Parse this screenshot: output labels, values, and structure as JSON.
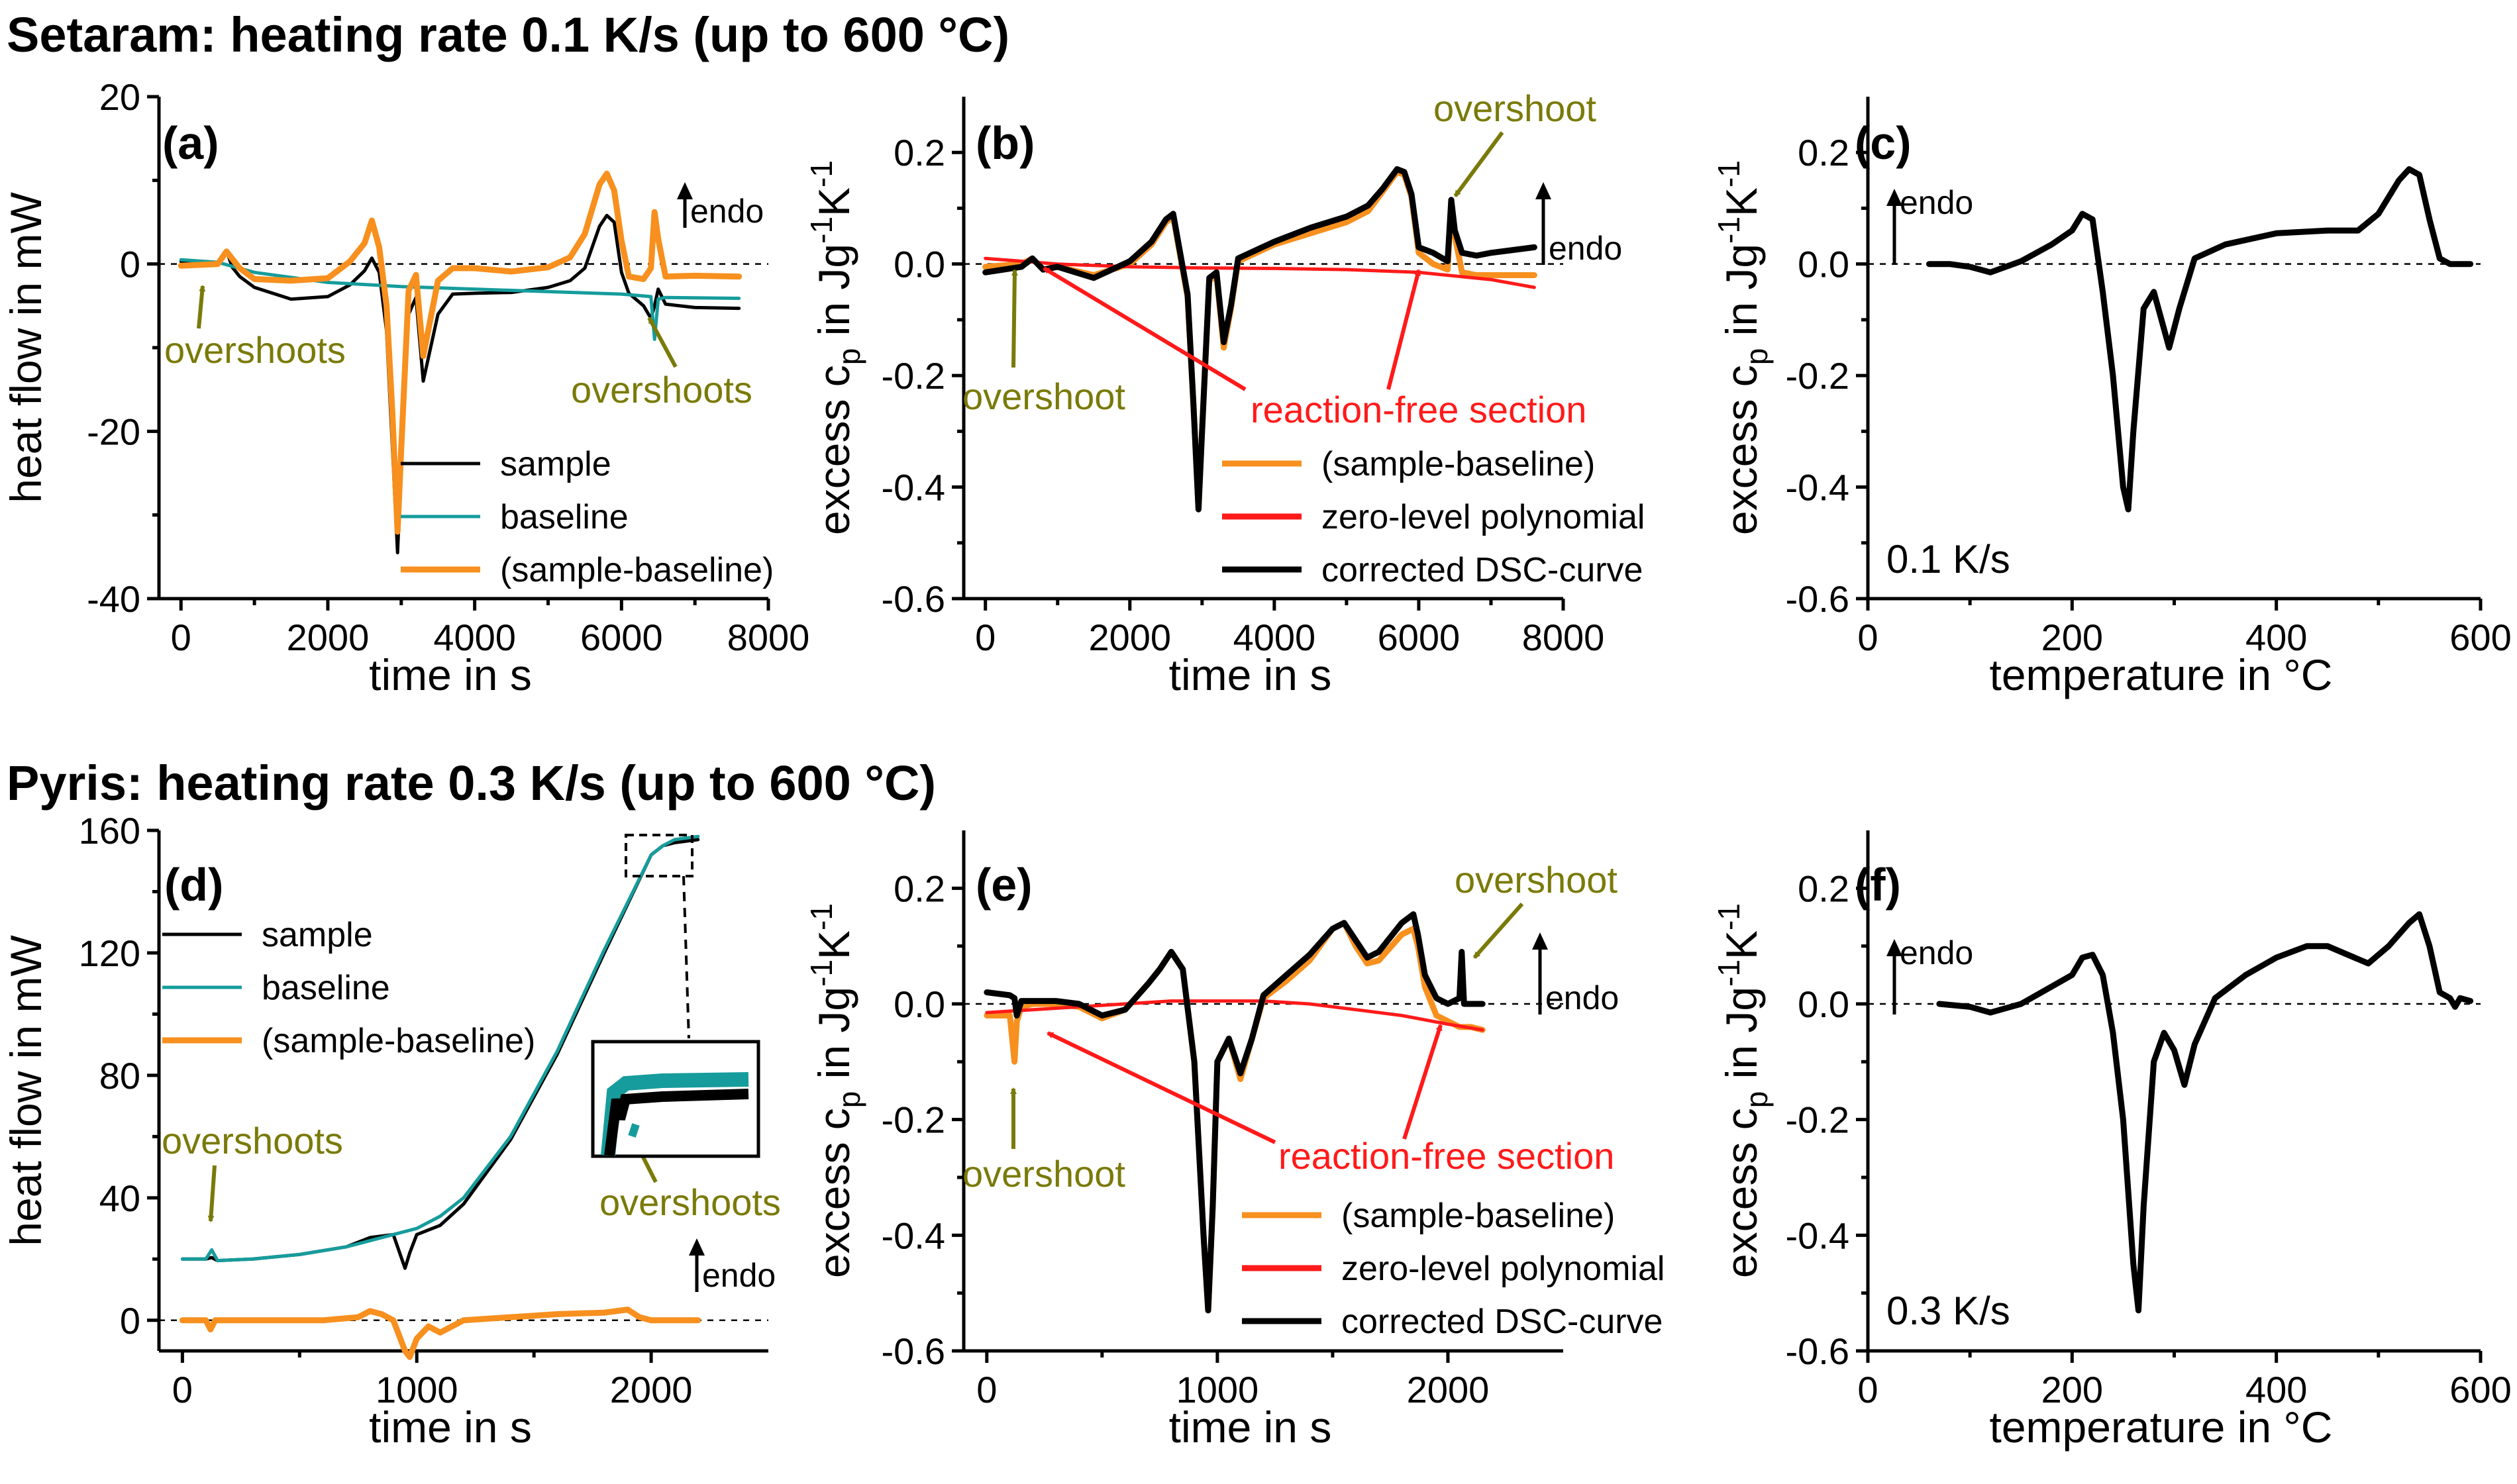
{
  "figure": {
    "title_top": "Setaram: heating rate 0.1 K/s (up to 600 °C)",
    "title_bottom": "Pyris: heating rate 0.3 K/s (up to 600 °C)"
  },
  "colors": {
    "sample": "#000000",
    "baseline": "#169c9c",
    "difference": "#f7901e",
    "polynomial": "#ff1a1a",
    "corrected": "#000000",
    "annotation_olive": "#7a7a0a",
    "annotation_red": "#ff1a1a"
  },
  "labels": {
    "endo": "endo",
    "overshoot": "overshoot",
    "overshoots": "overshoots",
    "reaction_free": "reaction-free section",
    "rate_c": "0.1 K/s",
    "rate_f": "0.3 K/s"
  },
  "chart_data": [
    {
      "id": "a",
      "type": "line",
      "panel_label": "(a)",
      "xlabel": "time in s",
      "ylabel": "heat flow in mW",
      "xlim": [
        -300,
        8000
      ],
      "ylim": [
        -40,
        20
      ],
      "xticks": [
        0,
        2000,
        4000,
        6000,
        8000
      ],
      "yticks": [
        -40,
        -20,
        0,
        20
      ],
      "legend": [
        "sample",
        "baseline",
        "(sample-baseline)"
      ],
      "series": [
        {
          "name": "sample",
          "x": [
            0,
            500,
            620,
            700,
            800,
            1000,
            1500,
            2000,
            2300,
            2500,
            2600,
            2700,
            2800,
            2880,
            2950,
            3000,
            3100,
            3200,
            3300,
            3400,
            3500,
            3700,
            4000,
            4500,
            5000,
            5300,
            5500,
            5700,
            5800,
            5900,
            6000,
            6100,
            6300,
            6400,
            6450,
            6500,
            6600,
            7000,
            7600
          ],
          "y": [
            0.3,
            0.2,
            1.6,
            -0.4,
            -1.5,
            -2.8,
            -4.2,
            -3.9,
            -2.5,
            -0.8,
            0.7,
            -1,
            -8,
            -22,
            -34.5,
            -24,
            -6,
            -4,
            -14,
            -10,
            -6,
            -3.6,
            -3.5,
            -3.4,
            -2.8,
            -2,
            -0.5,
            4.5,
            5.8,
            5,
            -1,
            -3.5,
            -5,
            -6.5,
            -5,
            -3,
            -4.8,
            -5.2,
            -5.3
          ]
        },
        {
          "name": "baseline",
          "x": [
            0,
            500,
            1000,
            2000,
            3000,
            4000,
            5000,
            6000,
            6400,
            6450,
            6500,
            6600,
            7600
          ],
          "y": [
            0.5,
            0.2,
            -1,
            -2.2,
            -2.7,
            -3,
            -3.3,
            -3.6,
            -3.9,
            -9,
            -4.2,
            -4,
            -4.1
          ]
        },
        {
          "name": "(sample-baseline)",
          "x": [
            0,
            500,
            620,
            700,
            800,
            1000,
            1500,
            2000,
            2300,
            2500,
            2600,
            2700,
            2800,
            2880,
            2950,
            3000,
            3100,
            3200,
            3300,
            3400,
            3500,
            3700,
            4000,
            4500,
            5000,
            5300,
            5500,
            5700,
            5800,
            5900,
            6000,
            6100,
            6300,
            6400,
            6450,
            6500,
            6600,
            7000,
            7600
          ],
          "y": [
            -0.2,
            0,
            1.5,
            0.6,
            -0.5,
            -1.8,
            -2,
            -1.7,
            0.3,
            2.5,
            5.2,
            2,
            -5,
            -18,
            -32,
            -22,
            -3.2,
            -1.3,
            -11,
            -6.5,
            -2,
            -0.5,
            -0.5,
            -0.9,
            -0.4,
            0.8,
            3.6,
            9.5,
            10.8,
            8.8,
            2.8,
            -1.5,
            -1.8,
            -0.5,
            6.2,
            3,
            -1.5,
            -1.4,
            -1.5
          ]
        }
      ]
    },
    {
      "id": "b",
      "type": "line",
      "panel_label": "(b)",
      "xlabel": "time in s",
      "ylabel": "excess c_p in Jg^-1K^-1",
      "xlim": [
        -300,
        8000
      ],
      "ylim": [
        -0.6,
        0.3
      ],
      "xticks": [
        0,
        2000,
        4000,
        6000,
        8000
      ],
      "yticks": [
        -0.6,
        -0.4,
        -0.2,
        0.0,
        0.2
      ],
      "legend": [
        "(sample-baseline)",
        "zero-level polynomial",
        "corrected DSC-curve"
      ],
      "series": [
        {
          "name": "(sample-baseline)",
          "x": [
            0,
            500,
            650,
            800,
            1000,
            1500,
            2000,
            2300,
            2500,
            2600,
            2800,
            2880,
            2950,
            3000,
            3100,
            3200,
            3300,
            3400,
            3500,
            4000,
            4500,
            5000,
            5300,
            5500,
            5700,
            5800,
            5900,
            6000,
            6200,
            6400,
            6450,
            6500,
            6600,
            6800,
            7000,
            7600
          ],
          "y": [
            -0.005,
            0,
            0.01,
            -0.01,
            -0.005,
            -0.02,
            0,
            0.035,
            0.075,
            0.085,
            -0.06,
            -0.25,
            -0.44,
            -0.3,
            -0.03,
            -0.02,
            -0.15,
            -0.08,
            0.005,
            0.035,
            0.055,
            0.075,
            0.095,
            0.13,
            0.165,
            0.16,
            0.12,
            0.02,
            0,
            -0.01,
            0.11,
            0.05,
            -0.015,
            -0.02,
            -0.02,
            -0.02
          ]
        },
        {
          "name": "zero-level polynomial",
          "x": [
            0,
            1000,
            2000,
            3000,
            4000,
            5000,
            6000,
            7000,
            7600
          ],
          "y": [
            0.01,
            0,
            -0.005,
            -0.007,
            -0.008,
            -0.01,
            -0.015,
            -0.028,
            -0.042
          ]
        },
        {
          "name": "corrected DSC-curve",
          "x": [
            0,
            500,
            650,
            800,
            1000,
            1500,
            2000,
            2300,
            2500,
            2600,
            2800,
            2880,
            2950,
            3000,
            3100,
            3200,
            3300,
            3400,
            3500,
            4000,
            4500,
            5000,
            5300,
            5500,
            5700,
            5800,
            5900,
            6000,
            6200,
            6400,
            6450,
            6500,
            6600,
            6800,
            7000,
            7600
          ],
          "y": [
            -0.015,
            -0.005,
            0.01,
            -0.01,
            -0.005,
            -0.025,
            0.005,
            0.04,
            0.08,
            0.09,
            -0.055,
            -0.25,
            -0.44,
            -0.3,
            -0.025,
            -0.015,
            -0.14,
            -0.075,
            0.01,
            0.04,
            0.065,
            0.085,
            0.105,
            0.135,
            0.17,
            0.165,
            0.125,
            0.03,
            0.02,
            0.005,
            0.115,
            0.06,
            0.02,
            0.015,
            0.02,
            0.03
          ]
        }
      ]
    },
    {
      "id": "c",
      "type": "line",
      "panel_label": "(c)",
      "xlabel": "temperature in °C",
      "ylabel": "excess c_p in Jg^-1K^-1",
      "xlim": [
        0,
        600
      ],
      "ylim": [
        -0.6,
        0.3
      ],
      "xticks": [
        0,
        200,
        400,
        600
      ],
      "yticks": [
        -0.6,
        -0.4,
        -0.2,
        0.0,
        0.2
      ],
      "series": [
        {
          "name": "corrected DSC-curve",
          "x": [
            60,
            80,
            100,
            120,
            150,
            180,
            200,
            210,
            220,
            230,
            240,
            250,
            255,
            260,
            270,
            280,
            295,
            305,
            320,
            350,
            400,
            450,
            480,
            500,
            520,
            530,
            540,
            550,
            560,
            570,
            590
          ],
          "y": [
            0,
            0,
            -0.005,
            -0.015,
            0.005,
            0.035,
            0.06,
            0.09,
            0.08,
            -0.05,
            -0.2,
            -0.4,
            -0.44,
            -0.3,
            -0.08,
            -0.05,
            -0.15,
            -0.08,
            0.01,
            0.035,
            0.055,
            0.06,
            0.06,
            0.09,
            0.15,
            0.17,
            0.16,
            0.08,
            0.01,
            0,
            0
          ]
        }
      ]
    },
    {
      "id": "d",
      "type": "line",
      "panel_label": "(d)",
      "xlabel": "time in s",
      "ylabel": "heat flow in mW",
      "xlim": [
        -100,
        2500
      ],
      "ylim": [
        -10,
        160
      ],
      "xticks": [
        0,
        1000,
        2000
      ],
      "yticks": [
        0,
        40,
        80,
        120,
        160
      ],
      "legend": [
        "sample",
        "baseline",
        "(sample-baseline)"
      ],
      "series": [
        {
          "name": "sample",
          "x": [
            0,
            100,
            125,
            150,
            300,
            500,
            700,
            800,
            900,
            950,
            970,
            1000,
            1100,
            1200,
            1400,
            1600,
            1800,
            2000,
            2050,
            2100,
            2200
          ],
          "y": [
            20,
            20,
            20.5,
            19.5,
            20,
            21.5,
            24,
            27,
            28,
            17,
            22,
            28,
            31,
            38,
            59,
            87,
            120,
            152,
            155,
            156,
            157
          ]
        },
        {
          "name": "baseline",
          "x": [
            0,
            100,
            125,
            150,
            300,
            500,
            700,
            800,
            900,
            1000,
            1100,
            1200,
            1400,
            1600,
            1800,
            2000,
            2050,
            2100,
            2200
          ],
          "y": [
            20,
            20,
            23,
            19.5,
            20,
            21.5,
            24,
            26,
            28,
            30,
            34,
            40,
            60,
            88,
            121,
            152,
            155,
            157,
            158
          ]
        },
        {
          "name": "(sample-baseline)",
          "x": [
            0,
            100,
            120,
            140,
            200,
            400,
            600,
            750,
            800,
            850,
            900,
            950,
            970,
            1000,
            1050,
            1100,
            1150,
            1200,
            1400,
            1600,
            1800,
            1900,
            1950,
            2000,
            2100,
            2200
          ],
          "y": [
            0,
            0,
            -3,
            0,
            0,
            0,
            0,
            1,
            3,
            2,
            0,
            -10,
            -12,
            -6,
            -2,
            -4,
            -2,
            0,
            1,
            2,
            2.5,
            3.5,
            1,
            0,
            0,
            0
          ]
        }
      ]
    },
    {
      "id": "e",
      "type": "line",
      "panel_label": "(e)",
      "xlabel": "time in s",
      "ylabel": "excess c_p in Jg^-1K^-1",
      "xlim": [
        -100,
        2500
      ],
      "ylim": [
        -0.6,
        0.3
      ],
      "xticks": [
        0,
        1000,
        2000
      ],
      "yticks": [
        -0.6,
        -0.4,
        -0.2,
        0.0,
        0.2
      ],
      "legend": [
        "(sample-baseline)",
        "zero-level polynomial",
        "corrected DSC-curve"
      ],
      "series": [
        {
          "name": "(sample-baseline)",
          "x": [
            0,
            100,
            120,
            130,
            150,
            200,
            300,
            400,
            500,
            600,
            700,
            750,
            800,
            850,
            900,
            940,
            960,
            980,
            1000,
            1050,
            1100,
            1150,
            1200,
            1300,
            1400,
            1500,
            1550,
            1600,
            1650,
            1700,
            1800,
            1850,
            1870,
            1900,
            1950,
            2000,
            2050,
            2100,
            2150
          ],
          "y": [
            -0.02,
            -0.02,
            -0.1,
            -0.03,
            -0.005,
            0,
            0,
            -0.005,
            -0.025,
            -0.01,
            0.035,
            0.06,
            0.09,
            0.06,
            -0.1,
            -0.4,
            -0.53,
            -0.35,
            -0.1,
            -0.06,
            -0.13,
            -0.06,
            0.01,
            0.04,
            0.075,
            0.13,
            0.14,
            0.1,
            0.07,
            0.075,
            0.12,
            0.13,
            0.1,
            0.03,
            -0.02,
            -0.03,
            -0.04,
            -0.04,
            -0.045
          ]
        },
        {
          "name": "zero-level polynomial",
          "x": [
            0,
            200,
            400,
            600,
            800,
            1000,
            1200,
            1400,
            1600,
            1800,
            2000,
            2150
          ],
          "y": [
            -0.015,
            -0.01,
            -0.005,
            0,
            0.005,
            0.005,
            0.005,
            0,
            -0.01,
            -0.02,
            -0.035,
            -0.045
          ]
        },
        {
          "name": "corrected DSC-curve",
          "x": [
            0,
            100,
            120,
            130,
            150,
            200,
            300,
            400,
            500,
            600,
            700,
            750,
            800,
            850,
            900,
            940,
            960,
            980,
            1000,
            1050,
            1100,
            1150,
            1200,
            1300,
            1400,
            1500,
            1550,
            1600,
            1650,
            1700,
            1800,
            1850,
            1870,
            1900,
            1950,
            2000,
            2050,
            2060,
            2070,
            2100,
            2150
          ],
          "y": [
            0.02,
            0.015,
            0.01,
            -0.02,
            0.005,
            0.005,
            0.005,
            0,
            -0.02,
            -0.01,
            0.035,
            0.06,
            0.09,
            0.06,
            -0.1,
            -0.4,
            -0.53,
            -0.35,
            -0.1,
            -0.06,
            -0.12,
            -0.06,
            0.015,
            0.05,
            0.085,
            0.13,
            0.14,
            0.11,
            0.08,
            0.09,
            0.14,
            0.155,
            0.12,
            0.05,
            0.01,
            0,
            0.01,
            0.09,
            0,
            0,
            0
          ]
        }
      ]
    },
    {
      "id": "f",
      "type": "line",
      "panel_label": "(f)",
      "xlabel": "temperature in °C",
      "ylabel": "excess c_p in Jg^-1K^-1",
      "xlim": [
        0,
        600
      ],
      "ylim": [
        -0.6,
        0.3
      ],
      "xticks": [
        0,
        200,
        400,
        600
      ],
      "yticks": [
        -0.6,
        -0.4,
        -0.2,
        0.0,
        0.2
      ],
      "series": [
        {
          "name": "corrected DSC-curve",
          "x": [
            70,
            100,
            120,
            150,
            180,
            200,
            210,
            220,
            230,
            240,
            250,
            260,
            265,
            270,
            280,
            290,
            300,
            310,
            320,
            340,
            370,
            400,
            430,
            450,
            470,
            490,
            510,
            530,
            540,
            550,
            560,
            570,
            575,
            580,
            590
          ],
          "y": [
            0,
            -0.005,
            -0.015,
            0,
            0.03,
            0.05,
            0.08,
            0.085,
            0.05,
            -0.05,
            -0.2,
            -0.45,
            -0.53,
            -0.35,
            -0.1,
            -0.05,
            -0.08,
            -0.14,
            -0.07,
            0.01,
            0.05,
            0.08,
            0.1,
            0.1,
            0.085,
            0.07,
            0.1,
            0.14,
            0.155,
            0.1,
            0.02,
            0.01,
            -0.005,
            0.01,
            0.005
          ]
        }
      ]
    }
  ]
}
